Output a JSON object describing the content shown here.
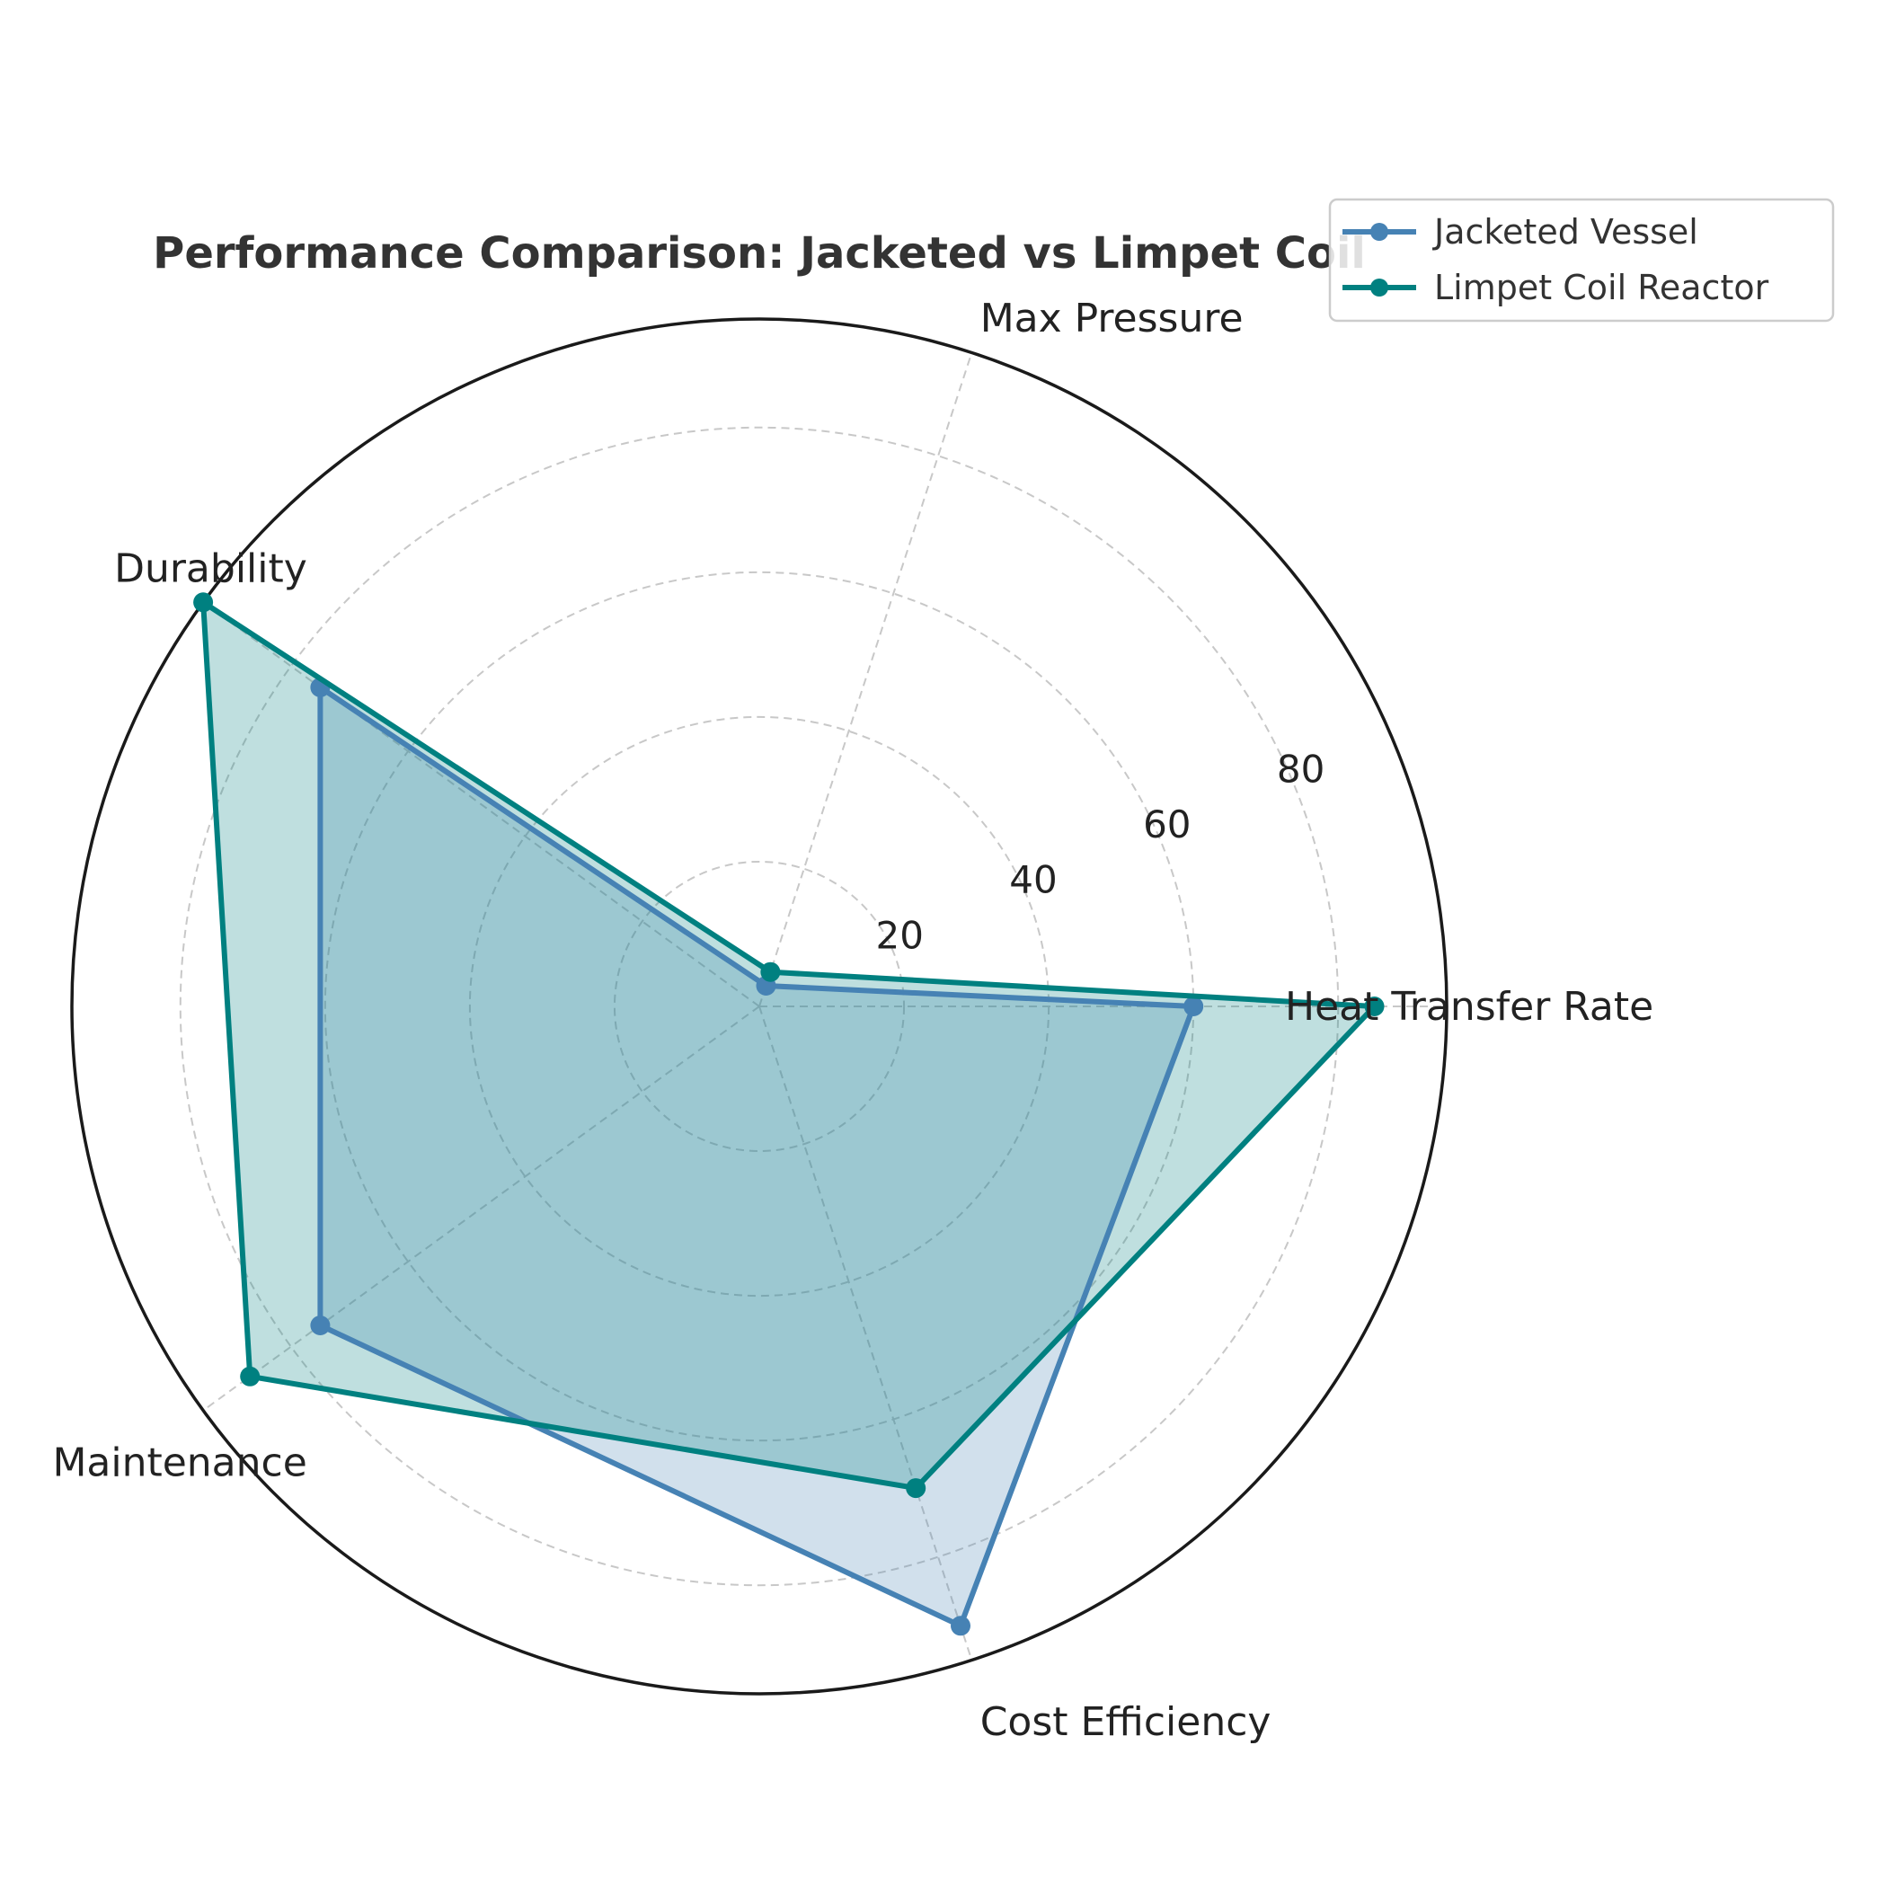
{
  "chart_data": {
    "type": "radar",
    "title": "Performance Comparison: Jacketed vs Limpet Coil",
    "categories": [
      "Heat Transfer Rate",
      "Max Pressure",
      "Durability",
      "Maintenance",
      "Cost Efficiency"
    ],
    "radial_ticks": [
      20,
      40,
      60,
      80
    ],
    "rlim": [
      0,
      95
    ],
    "grid": true,
    "legend_position": "top-right",
    "series": [
      {
        "name": "Jacketed Vessel",
        "values": [
          60,
          3,
          75,
          75,
          90
        ],
        "color": "#4682b4"
      },
      {
        "name": "Limpet Coil Reactor",
        "values": [
          85,
          5,
          95,
          87,
          70
        ],
        "color": "#008080"
      }
    ]
  }
}
